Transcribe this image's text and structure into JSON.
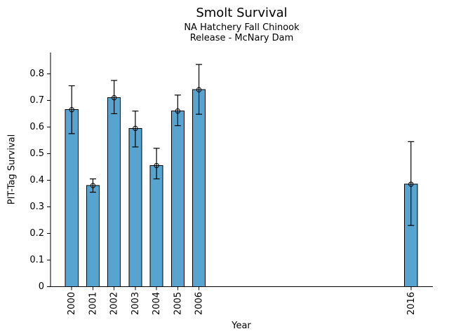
{
  "chart_data": {
    "type": "bar",
    "title": "Smolt Survival",
    "subtitle": [
      "NA Hatchery Fall Chinook",
      "Release - McNary Dam"
    ],
    "xlabel": "Year",
    "ylabel": "PIT-Tag Survival",
    "categories": [
      "2000",
      "2001",
      "2002",
      "2003",
      "2004",
      "2005",
      "2006",
      "2016"
    ],
    "x_years": [
      2000,
      2001,
      2002,
      2003,
      2004,
      2005,
      2006,
      2016
    ],
    "values": [
      0.665,
      0.38,
      0.71,
      0.595,
      0.455,
      0.66,
      0.74,
      0.385
    ],
    "error_low": [
      0.575,
      0.355,
      0.65,
      0.525,
      0.405,
      0.605,
      0.648,
      0.23
    ],
    "error_high": [
      0.755,
      0.405,
      0.775,
      0.66,
      0.52,
      0.72,
      0.835,
      0.545
    ],
    "y_ticks": [
      0,
      0.1,
      0.2,
      0.3,
      0.4,
      0.5,
      0.6,
      0.7,
      0.8
    ],
    "y_tick_labels": [
      "0",
      "0.1",
      "0.2",
      "0.3",
      "0.4",
      "0.5",
      "0.6",
      "0.7",
      "0.8"
    ],
    "xlim": [
      1999,
      2017
    ],
    "ylim": [
      0,
      0.88
    ],
    "bar_width_years": 0.6,
    "grid": false,
    "legend": false,
    "marker": "open-circle",
    "colors": {
      "bar_fill": "#58a4d0",
      "bar_edge": "#000000",
      "error_bar": "#000000",
      "marker_edge": "#000000",
      "axis": "#000000",
      "text": "#000000",
      "background": "#ffffff"
    }
  }
}
